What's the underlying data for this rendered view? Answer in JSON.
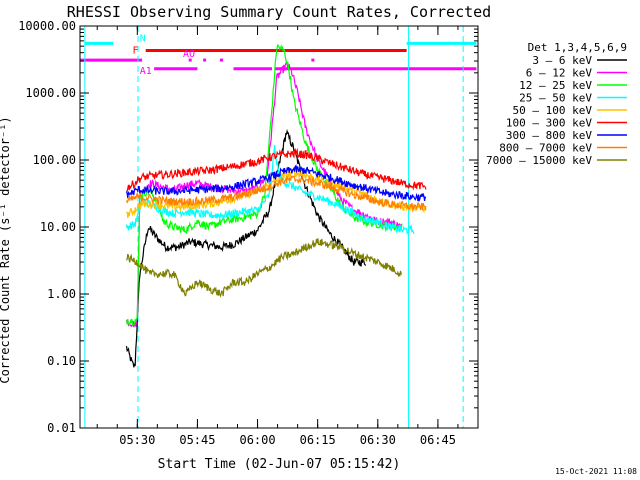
{
  "chart_data": {
    "type": "line",
    "title": "RHESSI Observing Summary Count Rates, Corrected",
    "xlabel": "Start Time (02-Jun-07 05:15:42)",
    "ylabel": "Corrected Count Rate (s⁻¹ detector⁻¹)",
    "yscale": "log",
    "ylim": [
      0.01,
      10000
    ],
    "xlim": [
      5.2617,
      6.9167
    ],
    "x_unit": "hours UT",
    "grid": false,
    "background": "#ffffff",
    "axis_color": "#000000",
    "y_ticks": [
      {
        "value": 0.01,
        "label": "0.01"
      },
      {
        "value": 0.1,
        "label": "0.10"
      },
      {
        "value": 1,
        "label": "1.00"
      },
      {
        "value": 10,
        "label": "10.00"
      },
      {
        "value": 100,
        "label": "100.00"
      },
      {
        "value": 1000,
        "label": "1000.00"
      },
      {
        "value": 10000,
        "label": "10000.00"
      }
    ],
    "x_ticks": [
      {
        "value": 5.5,
        "label": "05:30"
      },
      {
        "value": 5.75,
        "label": "05:45"
      },
      {
        "value": 6.0,
        "label": "06:00"
      },
      {
        "value": 6.25,
        "label": "06:15"
      },
      {
        "value": 6.5,
        "label": "06:30"
      },
      {
        "value": 6.75,
        "label": "06:45"
      }
    ],
    "legend": {
      "position": "right",
      "title": "Det 1,3,4,5,6,9"
    },
    "series": [
      {
        "name": "3 - 6 keV",
        "label": "3 – 6 keV",
        "color": "#000000",
        "points": [
          [
            5.455,
            0.16
          ],
          [
            5.48,
            0.09
          ],
          [
            5.49,
            0.08
          ],
          [
            5.51,
            2
          ],
          [
            5.545,
            10
          ],
          [
            5.58,
            7
          ],
          [
            5.62,
            5
          ],
          [
            5.67,
            5
          ],
          [
            5.72,
            6
          ],
          [
            5.78,
            5.5
          ],
          [
            5.85,
            5
          ],
          [
            5.9,
            5.5
          ],
          [
            5.95,
            7
          ],
          [
            6.0,
            9
          ],
          [
            6.05,
            18
          ],
          [
            6.08,
            60
          ],
          [
            6.12,
            260
          ],
          [
            6.15,
            150
          ],
          [
            6.2,
            40
          ],
          [
            6.25,
            15
          ],
          [
            6.3,
            8
          ],
          [
            6.35,
            5
          ],
          [
            6.4,
            3
          ],
          [
            6.45,
            3
          ]
        ]
      },
      {
        "name": "6 - 12 keV",
        "label": "6 – 12 keV",
        "color": "#ff00ff",
        "points": [
          [
            5.455,
            0.4
          ],
          [
            5.49,
            0.35
          ],
          [
            5.5,
            0.4
          ],
          [
            5.51,
            30
          ],
          [
            5.55,
            45
          ],
          [
            5.6,
            40
          ],
          [
            5.65,
            35
          ],
          [
            5.7,
            42
          ],
          [
            5.75,
            45
          ],
          [
            5.8,
            40
          ],
          [
            5.9,
            35
          ],
          [
            5.95,
            34
          ],
          [
            6.0,
            38
          ],
          [
            6.04,
            60
          ],
          [
            6.06,
            300
          ],
          [
            6.08,
            1700
          ],
          [
            6.12,
            2600
          ],
          [
            6.14,
            2200
          ],
          [
            6.17,
            900
          ],
          [
            6.2,
            300
          ],
          [
            6.25,
            100
          ],
          [
            6.3,
            50
          ],
          [
            6.35,
            25
          ],
          [
            6.4,
            18
          ],
          [
            6.45,
            15
          ],
          [
            6.5,
            12
          ],
          [
            6.55,
            12
          ],
          [
            6.6,
            10
          ]
        ]
      },
      {
        "name": "12 - 25 keV",
        "label": "12 – 25 keV",
        "color": "#00ff00",
        "points": [
          [
            5.455,
            0.4
          ],
          [
            5.49,
            0.4
          ],
          [
            5.5,
            0.4
          ],
          [
            5.51,
            30
          ],
          [
            5.55,
            35
          ],
          [
            5.58,
            25
          ],
          [
            5.61,
            12
          ],
          [
            5.65,
            10
          ],
          [
            5.7,
            9
          ],
          [
            5.75,
            12
          ],
          [
            5.8,
            10
          ],
          [
            5.85,
            12
          ],
          [
            5.9,
            13
          ],
          [
            5.95,
            14
          ],
          [
            6.0,
            16
          ],
          [
            6.03,
            30
          ],
          [
            6.06,
            600
          ],
          [
            6.08,
            5000
          ],
          [
            6.11,
            4300
          ],
          [
            6.13,
            2300
          ],
          [
            6.15,
            800
          ],
          [
            6.2,
            180
          ],
          [
            6.25,
            70
          ],
          [
            6.3,
            40
          ],
          [
            6.35,
            20
          ],
          [
            6.4,
            14
          ],
          [
            6.45,
            12
          ],
          [
            6.5,
            11
          ],
          [
            6.55,
            10
          ],
          [
            6.6,
            10
          ]
        ]
      },
      {
        "name": "25 - 50 keV",
        "label": "25 – 50 keV",
        "color": "#00ffff",
        "points": [
          [
            5.455,
            10
          ],
          [
            5.49,
            11
          ],
          [
            5.5,
            14
          ],
          [
            5.52,
            25
          ],
          [
            5.55,
            22
          ],
          [
            5.6,
            18
          ],
          [
            5.65,
            16
          ],
          [
            5.7,
            17
          ],
          [
            5.75,
            16
          ],
          [
            5.8,
            15
          ],
          [
            5.85,
            15
          ],
          [
            5.9,
            16
          ],
          [
            5.95,
            17
          ],
          [
            6.0,
            18
          ],
          [
            6.05,
            30
          ],
          [
            6.07,
            150
          ],
          [
            6.09,
            60
          ],
          [
            6.12,
            45
          ],
          [
            6.15,
            40
          ],
          [
            6.2,
            32
          ],
          [
            6.25,
            28
          ],
          [
            6.3,
            24
          ],
          [
            6.35,
            20
          ],
          [
            6.4,
            16
          ],
          [
            6.45,
            13
          ],
          [
            6.5,
            12
          ],
          [
            6.55,
            10
          ],
          [
            6.6,
            9
          ],
          [
            6.65,
            9
          ]
        ]
      },
      {
        "name": "50 - 100 keV",
        "label": "50 – 100 keV",
        "color": "#ffc000",
        "points": [
          [
            5.455,
            15
          ],
          [
            5.49,
            18
          ],
          [
            5.5,
            20
          ],
          [
            5.52,
            22
          ],
          [
            5.55,
            22
          ],
          [
            5.6,
            21
          ],
          [
            5.65,
            20
          ],
          [
            5.7,
            20
          ],
          [
            5.75,
            21
          ],
          [
            5.8,
            22
          ],
          [
            5.85,
            24
          ],
          [
            5.9,
            27
          ],
          [
            5.95,
            30
          ],
          [
            6.0,
            35
          ],
          [
            6.05,
            42
          ],
          [
            6.1,
            55
          ],
          [
            6.15,
            65
          ],
          [
            6.2,
            60
          ],
          [
            6.25,
            52
          ],
          [
            6.3,
            45
          ],
          [
            6.35,
            40
          ],
          [
            6.4,
            35
          ],
          [
            6.45,
            30
          ],
          [
            6.5,
            25
          ],
          [
            6.55,
            22
          ],
          [
            6.6,
            20
          ],
          [
            6.65,
            19
          ],
          [
            6.7,
            19
          ]
        ]
      },
      {
        "name": "100 - 300 keV",
        "label": "100 – 300 keV",
        "color": "#ff0000",
        "points": [
          [
            5.455,
            38
          ],
          [
            5.49,
            45
          ],
          [
            5.5,
            50
          ],
          [
            5.52,
            55
          ],
          [
            5.56,
            58
          ],
          [
            5.6,
            60
          ],
          [
            5.65,
            62
          ],
          [
            5.7,
            65
          ],
          [
            5.75,
            68
          ],
          [
            5.8,
            70
          ],
          [
            5.85,
            75
          ],
          [
            5.9,
            80
          ],
          [
            5.95,
            88
          ],
          [
            6.0,
            95
          ],
          [
            6.05,
            110
          ],
          [
            6.1,
            120
          ],
          [
            6.15,
            125
          ],
          [
            6.2,
            120
          ],
          [
            6.25,
            105
          ],
          [
            6.3,
            90
          ],
          [
            6.35,
            78
          ],
          [
            6.4,
            68
          ],
          [
            6.45,
            60
          ],
          [
            6.5,
            55
          ],
          [
            6.55,
            50
          ],
          [
            6.6,
            45
          ],
          [
            6.65,
            42
          ],
          [
            6.7,
            40
          ]
        ]
      },
      {
        "name": "300 - 800 keV",
        "label": "300 – 800 keV",
        "color": "#0000ff",
        "points": [
          [
            5.455,
            30
          ],
          [
            5.49,
            34
          ],
          [
            5.5,
            36
          ],
          [
            5.55,
            35
          ],
          [
            5.6,
            34
          ],
          [
            5.65,
            34
          ],
          [
            5.7,
            35
          ],
          [
            5.75,
            36
          ],
          [
            5.8,
            37
          ],
          [
            5.85,
            38
          ],
          [
            5.9,
            40
          ],
          [
            5.95,
            44
          ],
          [
            6.0,
            48
          ],
          [
            6.05,
            55
          ],
          [
            6.1,
            65
          ],
          [
            6.15,
            72
          ],
          [
            6.2,
            70
          ],
          [
            6.25,
            62
          ],
          [
            6.3,
            55
          ],
          [
            6.35,
            48
          ],
          [
            6.4,
            42
          ],
          [
            6.45,
            38
          ],
          [
            6.5,
            34
          ],
          [
            6.55,
            31
          ],
          [
            6.6,
            30
          ],
          [
            6.65,
            28
          ],
          [
            6.7,
            28
          ]
        ]
      },
      {
        "name": "800 - 7000 keV",
        "label": "800 – 7000 keV",
        "color": "#ff8000",
        "points": [
          [
            5.455,
            24
          ],
          [
            5.49,
            27
          ],
          [
            5.5,
            28
          ],
          [
            5.55,
            27
          ],
          [
            5.6,
            25
          ],
          [
            5.65,
            24
          ],
          [
            5.7,
            24
          ],
          [
            5.75,
            24
          ],
          [
            5.8,
            25
          ],
          [
            5.85,
            26
          ],
          [
            5.9,
            28
          ],
          [
            5.95,
            31
          ],
          [
            6.0,
            35
          ],
          [
            6.05,
            40
          ],
          [
            6.1,
            48
          ],
          [
            6.15,
            52
          ],
          [
            6.2,
            50
          ],
          [
            6.25,
            45
          ],
          [
            6.3,
            40
          ],
          [
            6.35,
            35
          ],
          [
            6.4,
            30
          ],
          [
            6.45,
            27
          ],
          [
            6.5,
            24
          ],
          [
            6.55,
            22
          ],
          [
            6.6,
            21
          ],
          [
            6.65,
            20
          ],
          [
            6.7,
            20
          ]
        ]
      },
      {
        "name": "7000 - 15000 keV",
        "label": "7000 – 15000 keV",
        "color": "#808000",
        "points": [
          [
            5.455,
            3.5
          ],
          [
            5.5,
            3
          ],
          [
            5.55,
            2
          ],
          [
            5.6,
            2
          ],
          [
            5.65,
            2
          ],
          [
            5.7,
            1
          ],
          [
            5.75,
            1.5
          ],
          [
            5.8,
            1.2
          ],
          [
            5.85,
            1
          ],
          [
            5.9,
            1.5
          ],
          [
            5.95,
            1.5
          ],
          [
            6.0,
            2
          ],
          [
            6.05,
            2.5
          ],
          [
            6.1,
            3.5
          ],
          [
            6.15,
            4
          ],
          [
            6.2,
            5
          ],
          [
            6.25,
            6
          ],
          [
            6.3,
            5.5
          ],
          [
            6.35,
            5
          ],
          [
            6.4,
            4
          ],
          [
            6.45,
            3.5
          ],
          [
            6.5,
            3
          ],
          [
            6.55,
            2.5
          ],
          [
            6.6,
            2
          ]
        ]
      }
    ],
    "status_bars": [
      {
        "label": "N",
        "color": "#00ffff",
        "level": 5500,
        "segments": [
          [
            5.28,
            5.4
          ],
          [
            6.62,
            6.91
          ]
        ]
      },
      {
        "label": "F",
        "color": "#ff0000",
        "level": 4300,
        "segments": [
          [
            5.535,
            6.62
          ]
        ]
      },
      {
        "label": "AO",
        "color": "#ff00ff",
        "level": 3100,
        "segments": [
          [
            5.262,
            5.52
          ]
        ]
      },
      {
        "label": "A1",
        "color": "#ff00ff",
        "level": 2300,
        "segments": [
          [
            5.57,
            5.75
          ],
          [
            5.9,
            6.06
          ],
          [
            6.07,
            6.91
          ]
        ]
      }
    ],
    "ao_dots": [
      5.72,
      5.78,
      5.85,
      6.23
    ],
    "vlines": [
      {
        "x": 5.282,
        "color": "#00ffff",
        "style": "solid"
      },
      {
        "x": 5.503,
        "color": "#00ffff",
        "style": "dashed"
      },
      {
        "x": 6.628,
        "color": "#00ffff",
        "style": "solid"
      },
      {
        "x": 6.855,
        "color": "#00ffff",
        "style": "dashed"
      }
    ]
  },
  "footer_timestamp": "15-Oct-2021 11:08"
}
